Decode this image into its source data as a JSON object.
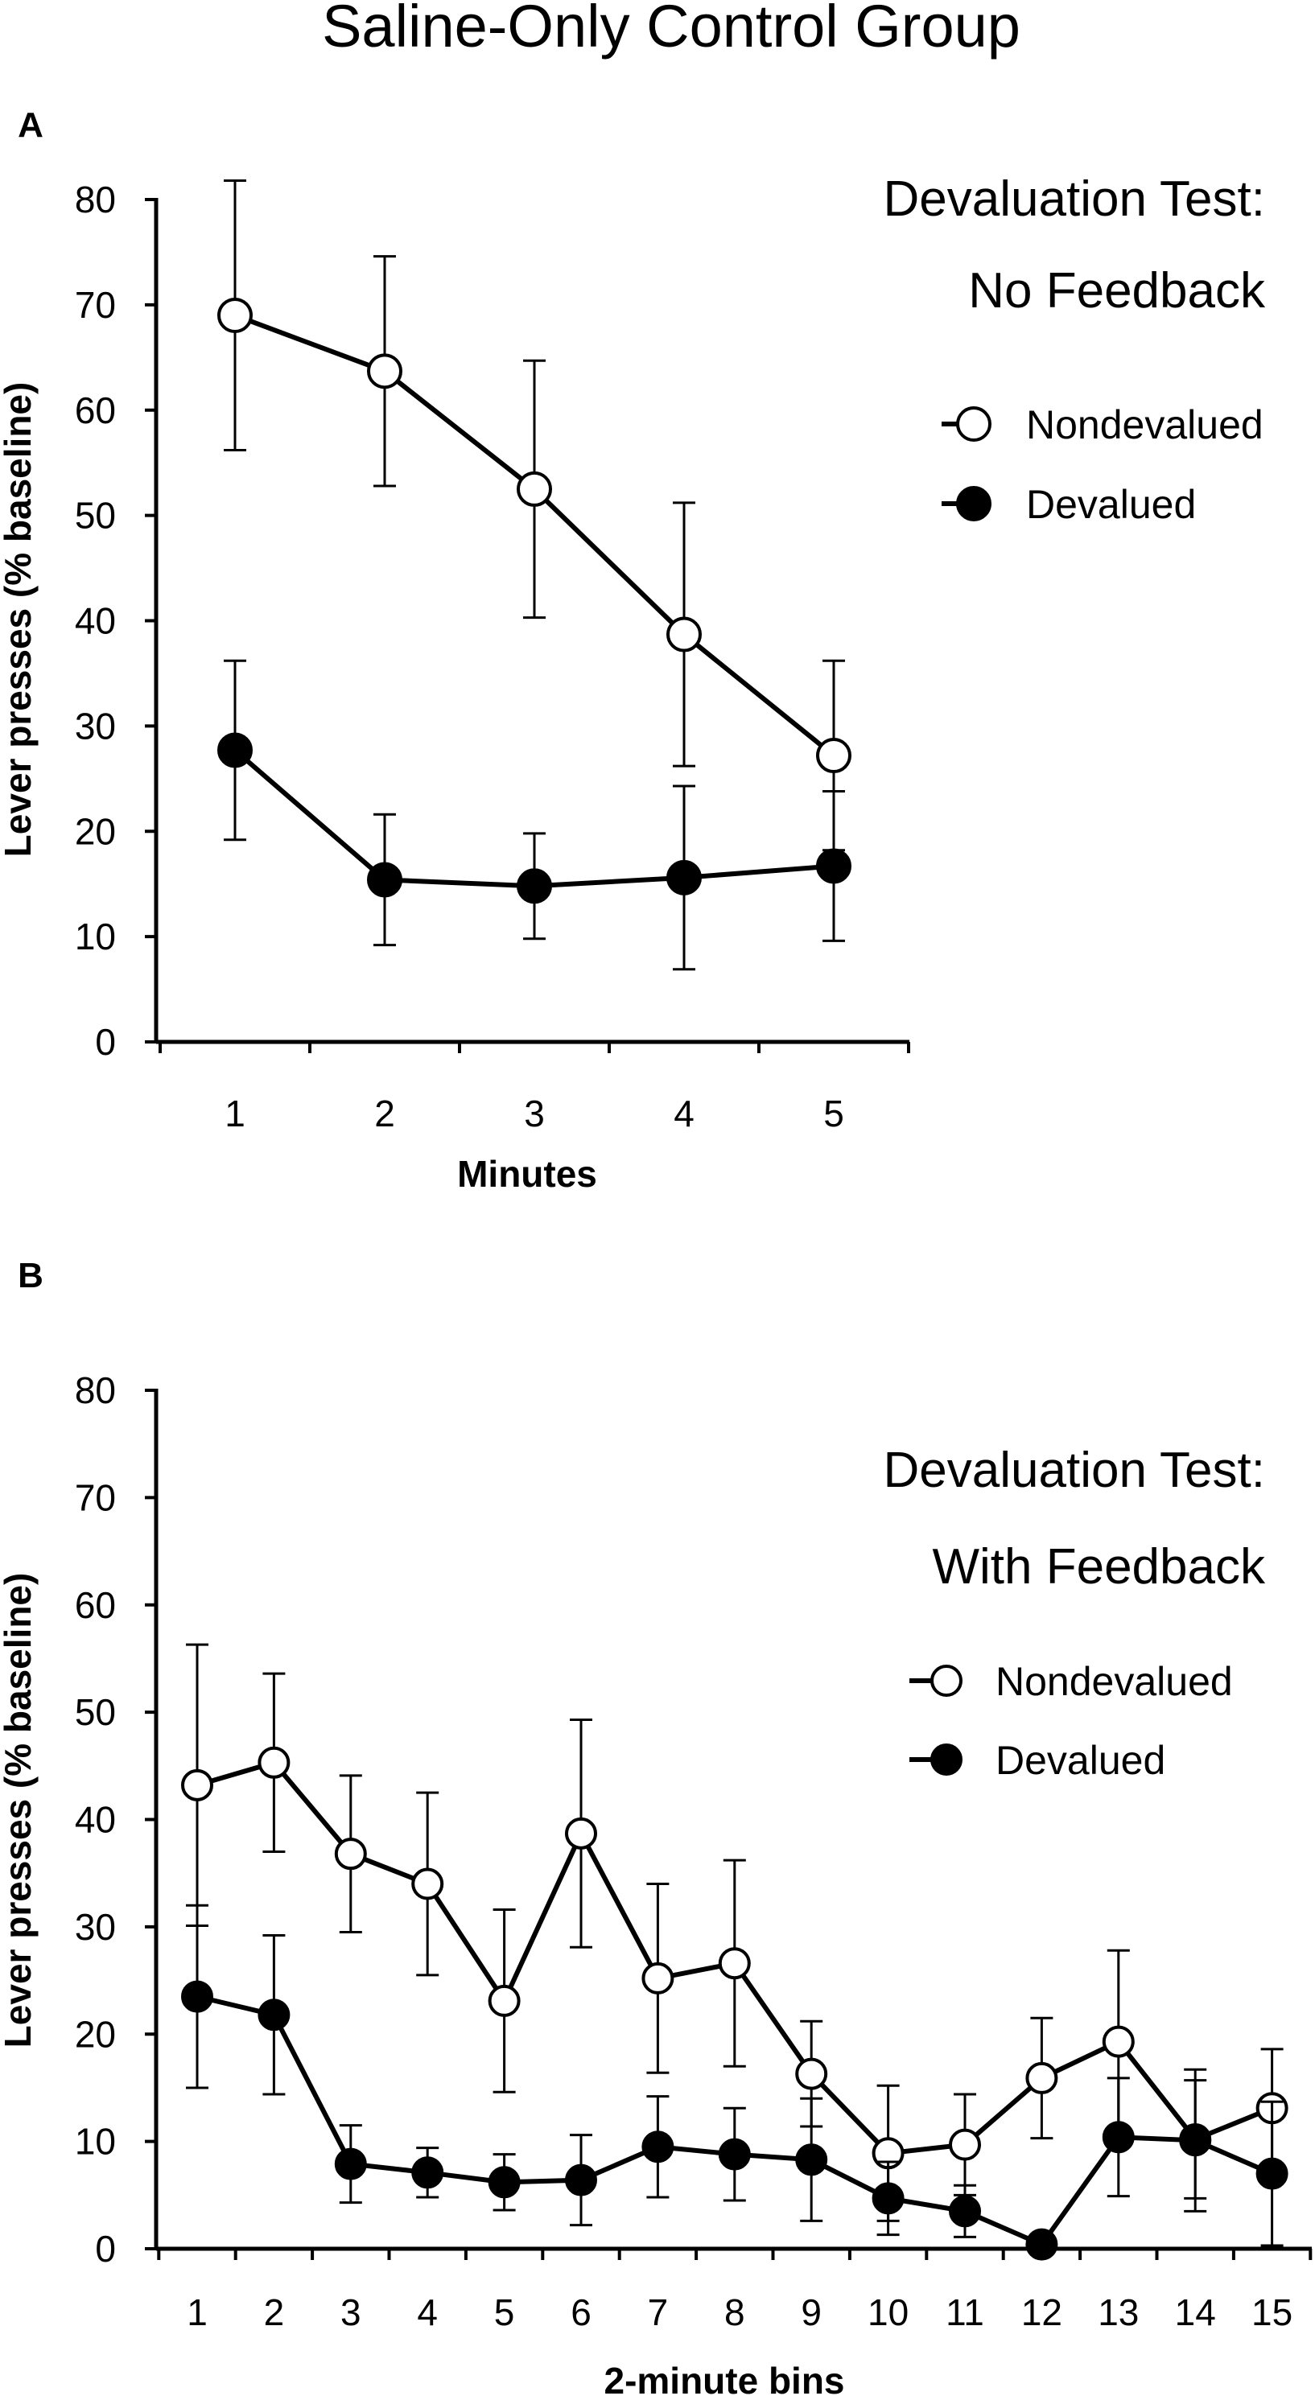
{
  "figure_title": "Saline-Only Control Group",
  "chart_data": [
    {
      "panel": "A",
      "type": "line",
      "title": "Devaluation Test:",
      "subtitle": "No Feedback",
      "xlabel": "Minutes",
      "ylabel": "Lever presses (% baseline)",
      "categories": [
        "1",
        "2",
        "3",
        "4",
        "5"
      ],
      "ylim": [
        0,
        80
      ],
      "yticks": [
        0,
        10,
        20,
        30,
        40,
        50,
        60,
        70,
        80
      ],
      "legend_position": "top-right",
      "series": [
        {
          "name": "Nondevalued",
          "marker": "open-circle",
          "values": [
            69,
            63.7,
            52.5,
            38.7,
            27.2
          ],
          "errors": [
            12.8,
            10.9,
            12.2,
            12.5,
            9
          ]
        },
        {
          "name": "Devalued",
          "marker": "filled-circle",
          "values": [
            27.7,
            15.4,
            14.8,
            15.6,
            16.7
          ],
          "errors": [
            8.5,
            6.2,
            5,
            8.7,
            7.1
          ]
        }
      ]
    },
    {
      "panel": "B",
      "type": "line",
      "title": "Devaluation Test:",
      "subtitle": "With Feedback",
      "xlabel": "2-minute bins",
      "ylabel": "Lever presses (% baseline)",
      "categories": [
        "1",
        "2",
        "3",
        "4",
        "5",
        "6",
        "7",
        "8",
        "9",
        "10",
        "11",
        "12",
        "13",
        "14",
        "15"
      ],
      "ylim": [
        0,
        80
      ],
      "yticks": [
        0,
        10,
        20,
        30,
        40,
        50,
        60,
        70,
        80
      ],
      "legend_position": "top-right",
      "series": [
        {
          "name": "Nondevalued",
          "marker": "open-circle",
          "values": [
            43.2,
            45.3,
            36.8,
            34,
            23.1,
            38.7,
            25.2,
            26.6,
            16.3,
            8.9,
            9.7,
            15.9,
            19.3,
            10.2,
            13.1
          ],
          "errors": [
            13.1,
            8.3,
            7.3,
            8.5,
            8.5,
            10.6,
            8.8,
            9.6,
            4.9,
            6.3,
            4.7,
            5.6,
            8.5,
            5.5,
            5.5
          ]
        },
        {
          "name": "Devalued",
          "marker": "filled-circle",
          "values": [
            23.5,
            21.8,
            7.9,
            7.1,
            6.2,
            6.4,
            9.5,
            8.8,
            8.3,
            4.7,
            3.5,
            0.4,
            10.4,
            10.1,
            7
          ],
          "errors": [
            8.5,
            7.4,
            3.6,
            2.3,
            2.6,
            4.2,
            4.7,
            4.3,
            5.7,
            3.4,
            2.4,
            0,
            5.5,
            6.6,
            6.7
          ]
        }
      ]
    }
  ]
}
